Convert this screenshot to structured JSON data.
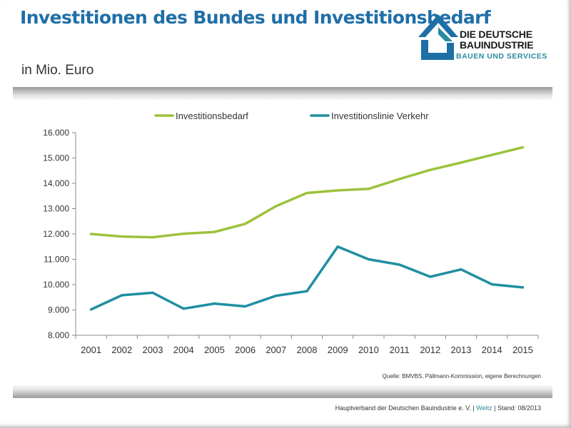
{
  "header": {
    "title": "Investitionen des Bundes und Investitionsbedarf",
    "subtitle": "in Mio. Euro"
  },
  "logo": {
    "line1": "DIE DEUTSCHE",
    "line2": "BAUINDUSTRIE",
    "line3": "BAUEN UND SERVICES",
    "icon": "house-logo-icon",
    "colors": {
      "blue": "#1f6fa7",
      "teal": "#2a8aa0"
    }
  },
  "chart_data": {
    "type": "line",
    "title": "",
    "xlabel": "",
    "ylabel": "",
    "categories": [
      "2001",
      "2002",
      "2003",
      "2004",
      "2005",
      "2006",
      "2007",
      "2008",
      "2009",
      "2010",
      "2011",
      "2012",
      "2013",
      "2014",
      "2015"
    ],
    "series": [
      {
        "name": "Investitionsbedarf",
        "color": "#9bc23c",
        "values": [
          12000,
          11900,
          11870,
          12010,
          12080,
          12400,
          13100,
          13620,
          13720,
          13780,
          14170,
          14530,
          14820,
          15120,
          15420
        ]
      },
      {
        "name": "Investitionslinie Verkehr",
        "color": "#1f8fa0",
        "values": [
          9020,
          9580,
          9680,
          9050,
          9250,
          9140,
          9560,
          9740,
          11500,
          11000,
          10790,
          10310,
          10600,
          10010,
          9890
        ]
      }
    ],
    "ylim": [
      8000,
      16000
    ],
    "yticks": [
      8000,
      9000,
      10000,
      11000,
      12000,
      13000,
      14000,
      15000,
      16000
    ],
    "ytick_labels": [
      "8.000",
      "9.000",
      "10.000",
      "11.000",
      "12.000",
      "13.000",
      "14.000",
      "15.000",
      "16.000"
    ],
    "grid": false,
    "legend": "top-center"
  },
  "source_note": "Quelle: BMVBS, Pällmann-Kommission, eigene Berechnungen",
  "footer": {
    "org": "Hauptverband der Deutschen Bauindustrie e. V. | ",
    "author": "Weitz",
    "date": " | Stand: 08/2013"
  }
}
